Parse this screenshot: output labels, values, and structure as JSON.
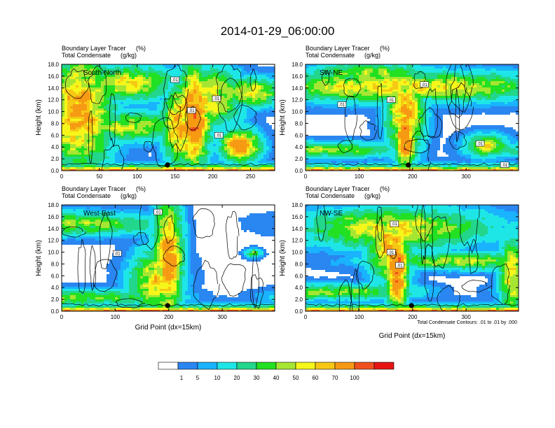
{
  "figure": {
    "title": "2014-01-29_06:00:00",
    "contour_note": "Total Condensate Contours: .01 to .01 by .000",
    "xlabel": "Grid Point (dx=15km)",
    "contour_label": ".01"
  },
  "colorbar": {
    "labels": [
      "1",
      "5",
      "10",
      "20",
      "30",
      "40",
      "50",
      "60",
      "70",
      "100"
    ],
    "colors": [
      "#ffffff",
      "#2a86f0",
      "#19b3ff",
      "#1ee6e6",
      "#22d68c",
      "#22e022",
      "#a6e632",
      "#f6f61a",
      "#f6c814",
      "#f69a14",
      "#f0501e",
      "#e81414"
    ]
  },
  "chart_data": [
    {
      "type": "heatmap",
      "panel_label": "South-North",
      "subtitle_left": [
        "Boundary Layer Tracer",
        "Total Condensate"
      ],
      "subtitle_units": [
        "(%)",
        "(g/kg)"
      ],
      "ylabel": "Height (km)",
      "xlabel": "",
      "ylim": [
        0,
        18
      ],
      "xlim": [
        0,
        282
      ],
      "yticks": [
        "0.0",
        "2.0",
        "4.0",
        "6.0",
        "8.0",
        "10.0",
        "12.0",
        "14.0",
        "16.0",
        "18.0"
      ],
      "xticks": [
        0,
        50,
        100,
        150,
        200,
        250
      ],
      "marker_x": 140,
      "labels_at": [
        [
          150,
          15.4
        ],
        [
          205,
          12.2
        ],
        [
          172,
          10.2
        ],
        [
          208,
          6.0
        ]
      ]
    },
    {
      "type": "heatmap",
      "panel_label": "SW-NE",
      "subtitle_left": [
        "Boundary Layer Tracer",
        "Total Condensate"
      ],
      "subtitle_units": [
        "(%)",
        "(g/kg)"
      ],
      "ylabel": "Height (km)",
      "xlabel": "",
      "ylim": [
        0,
        18
      ],
      "xlim": [
        0,
        398
      ],
      "yticks": [
        "0.0",
        "2.0",
        "4.0",
        "6.0",
        "8.0",
        "10.0",
        "12.0",
        "14.0",
        "16.0",
        "18.0"
      ],
      "xticks": [
        0,
        100,
        200,
        300
      ],
      "marker_x": 192,
      "labels_at": [
        [
          222,
          14.6
        ],
        [
          160,
          12.0
        ],
        [
          68,
          11.2
        ],
        [
          326,
          4.6
        ],
        [
          372,
          1.0
        ]
      ]
    },
    {
      "type": "heatmap",
      "panel_label": "West-East",
      "subtitle_left": [
        "Boundary Layer Tracer",
        "Total Condensate"
      ],
      "subtitle_units": [
        "(%)",
        "(g/kg)"
      ],
      "ylabel": "Height (km)",
      "xlabel": "Grid Point (dx=15km)",
      "ylim": [
        0,
        18
      ],
      "xlim": [
        0,
        398
      ],
      "yticks": [
        "0.0",
        "2.0",
        "4.0",
        "6.0",
        "8.0",
        "10.0",
        "12.0",
        "14.0",
        "16.0",
        "18.0"
      ],
      "xticks": [
        0,
        100,
        200,
        300
      ],
      "marker_x": 198,
      "labels_at": [
        [
          180,
          16.8
        ],
        [
          104,
          9.8
        ]
      ]
    },
    {
      "type": "heatmap",
      "panel_label": "NW-SE",
      "subtitle_left": [
        "Boundary Layer Tracer",
        "Total Condensate"
      ],
      "subtitle_units": [
        "(%)",
        "(g/kg)"
      ],
      "ylabel": "Height (km)",
      "xlabel": "Grid Point (dx=15km)",
      "ylim": [
        0,
        18
      ],
      "xlim": [
        0,
        398
      ],
      "yticks": [
        "0.0",
        "2.0",
        "4.0",
        "6.0",
        "8.0",
        "10.0",
        "12.0",
        "14.0",
        "16.0",
        "18.0"
      ],
      "xticks": [
        0,
        100,
        200,
        300
      ],
      "marker_x": 198,
      "labels_at": [
        [
          166,
          14.8
        ],
        [
          160,
          10.0
        ],
        [
          176,
          7.8
        ]
      ]
    }
  ]
}
